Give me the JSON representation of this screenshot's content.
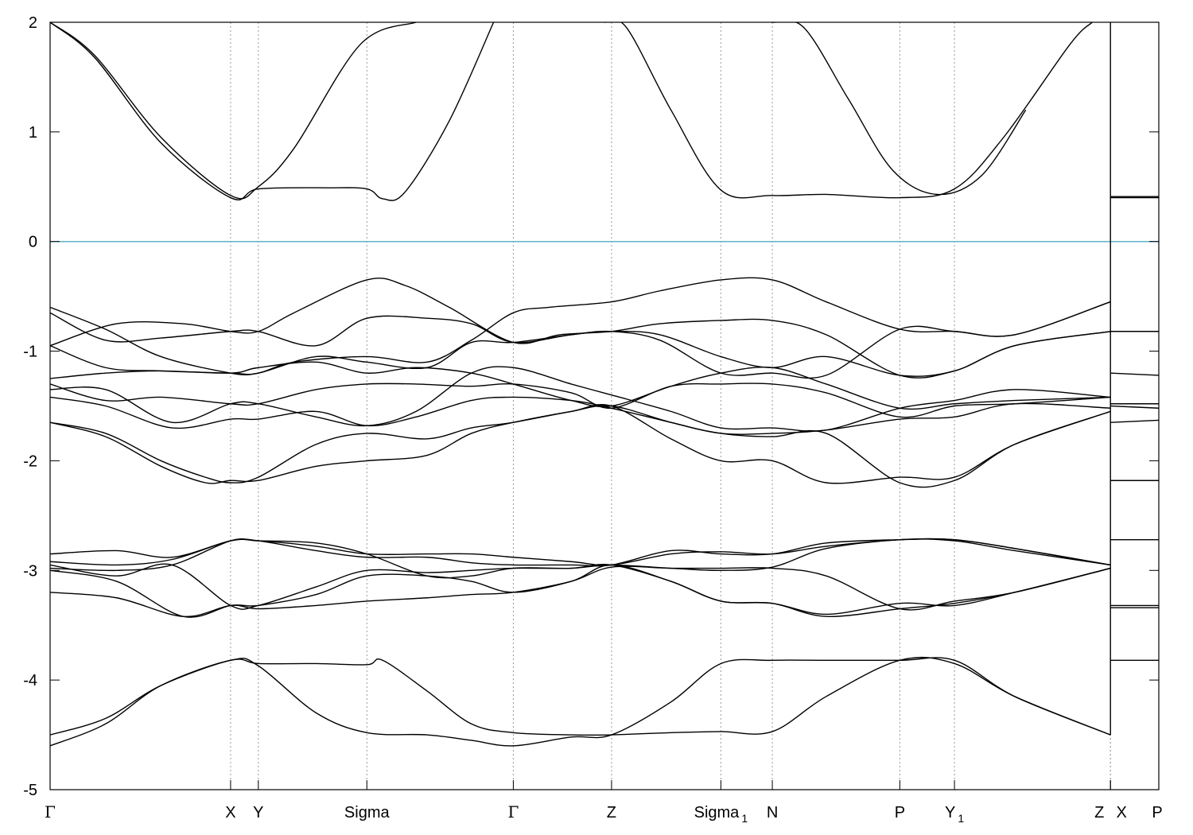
{
  "chart_data": {
    "type": "line",
    "title": "",
    "xlabel": "",
    "ylabel": "",
    "ylim": [
      -5,
      2
    ],
    "yticks": [
      -5,
      -4,
      -3,
      -2,
      -1,
      0,
      1,
      2
    ],
    "xlim": [
      0,
      1.0
    ],
    "kpoints": [
      {
        "label": "Γ",
        "x": 0.0
      },
      {
        "label": "X",
        "x": 0.1628
      },
      {
        "label": "Y",
        "x": 0.1878
      },
      {
        "label": "Sigma",
        "x": 0.2857
      },
      {
        "label": "Γ",
        "x": 0.4178
      },
      {
        "label": "Z",
        "x": 0.5064
      },
      {
        "label": "Sigma",
        "sub": "1",
        "x": 0.605
      },
      {
        "label": "N",
        "x": 0.6514
      },
      {
        "label": "P",
        "x": 0.7664
      },
      {
        "label": "Y",
        "sub": "1",
        "x": 0.8157
      },
      {
        "label": "Z",
        "x": 0.9564
      },
      {
        "label": "X",
        "x": 0.9564
      },
      {
        "label": "P",
        "x": 1.0
      }
    ],
    "fermi_level": 0,
    "grid": "vertical-dotted-at-kpoints",
    "colors": {
      "bands": "#000000",
      "fermi": "#5fb3c9",
      "grid": "#999999"
    },
    "series": [
      {
        "x": [
          0.0,
          0.04,
          0.1,
          0.1628,
          0.1878,
          0.22,
          0.28,
          0.33
        ],
        "y": [
          2.0,
          1.7,
          0.95,
          0.42,
          0.5,
          0.85,
          1.8,
          2.0
        ]
      },
      {
        "x": [
          0.0,
          0.04,
          0.1,
          0.1628,
          0.1878,
          0.25,
          0.2857,
          0.3,
          0.32,
          0.36,
          0.4
        ],
        "y": [
          2.0,
          1.68,
          0.9,
          0.4,
          0.48,
          0.49,
          0.48,
          0.39,
          0.45,
          1.1,
          2.0
        ]
      },
      {
        "x": [
          0.5,
          0.52,
          0.56,
          0.605,
          0.6514,
          0.7,
          0.7664,
          0.8157,
          0.86,
          0.92,
          0.94
        ],
        "y": [
          2.0,
          1.95,
          1.2,
          0.47,
          0.42,
          0.43,
          0.4,
          0.48,
          0.95,
          1.8,
          2.0
        ]
      },
      {
        "x": [
          0.6514,
          0.68,
          0.72,
          0.76,
          0.8,
          0.84,
          0.88
        ],
        "y": [
          2.0,
          1.95,
          1.3,
          0.65,
          0.43,
          0.6,
          1.2
        ]
      },
      {
        "x": [
          0.9564,
          1.0
        ],
        "y": [
          0.41,
          0.41
        ]
      },
      {
        "x": [
          0.9564,
          1.0
        ],
        "y": [
          0.4,
          0.4
        ]
      },
      {
        "x": [
          0.0,
          0.05,
          0.1,
          0.1628,
          0.1878,
          0.22,
          0.2857,
          0.34,
          0.38,
          0.4178,
          0.45,
          0.5064,
          0.55,
          0.605,
          0.6514,
          0.7,
          0.7664,
          0.8157,
          0.87,
          0.9564
        ],
        "y": [
          -0.6,
          -0.8,
          -1.05,
          -1.2,
          -1.2,
          -1.1,
          -1.05,
          -1.1,
          -0.9,
          -0.65,
          -0.6,
          -0.55,
          -0.45,
          -0.35,
          -0.35,
          -0.55,
          -0.8,
          -0.82,
          -0.85,
          -0.55
        ]
      },
      {
        "x": [
          0.0,
          0.06,
          0.12,
          0.1628,
          0.1878,
          0.22,
          0.2857,
          0.32,
          0.36,
          0.4178,
          0.46,
          0.5064,
          0.55,
          0.605,
          0.6514,
          0.7,
          0.7664,
          0.8157,
          0.87,
          0.9564
        ],
        "y": [
          -0.95,
          -0.75,
          -0.75,
          -0.82,
          -0.82,
          -0.65,
          -0.35,
          -0.4,
          -0.6,
          -0.92,
          -0.85,
          -0.82,
          -0.75,
          -0.72,
          -0.72,
          -0.85,
          -1.22,
          -1.18,
          -0.95,
          -0.82
        ]
      },
      {
        "x": [
          0.0,
          0.05,
          0.1,
          0.1628,
          0.1878,
          0.24,
          0.2857,
          0.34,
          0.38,
          0.4178,
          0.47,
          0.5064,
          0.55,
          0.605,
          0.6514,
          0.7,
          0.7664,
          0.8157,
          0.87,
          0.9564
        ],
        "y": [
          -0.65,
          -0.9,
          -0.88,
          -0.82,
          -0.82,
          -0.95,
          -0.7,
          -0.7,
          -0.75,
          -0.92,
          -0.85,
          -0.82,
          -0.85,
          -1.05,
          -1.15,
          -1.05,
          -1.22,
          -1.18,
          -0.95,
          -0.82
        ]
      },
      {
        "x": [
          0.0,
          0.05,
          0.1,
          0.1628,
          0.1878,
          0.24,
          0.2857,
          0.34,
          0.38,
          0.4178,
          0.47,
          0.5064,
          0.55,
          0.605,
          0.6514,
          0.7,
          0.7664,
          0.8157,
          0.87,
          0.9564
        ],
        "y": [
          -0.95,
          -1.15,
          -1.18,
          -1.2,
          -1.2,
          -1.05,
          -1.1,
          -1.15,
          -0.92,
          -0.92,
          -0.85,
          -0.82,
          -0.9,
          -1.2,
          -1.2,
          -1.22,
          -0.8,
          -0.82,
          -0.85,
          -0.55
        ]
      },
      {
        "x": [
          0.0,
          0.05,
          0.1,
          0.1628,
          0.1878,
          0.24,
          0.2857,
          0.33,
          0.38,
          0.4178,
          0.47,
          0.5064,
          0.56,
          0.605,
          0.6514,
          0.7,
          0.7664,
          0.8157,
          0.87,
          0.9564
        ],
        "y": [
          -1.25,
          -1.2,
          -1.18,
          -1.2,
          -1.15,
          -1.1,
          -1.2,
          -1.15,
          -1.2,
          -1.3,
          -1.45,
          -1.5,
          -1.32,
          -1.2,
          -1.15,
          -1.3,
          -1.52,
          -1.48,
          -1.45,
          -1.42
        ]
      },
      {
        "x": [
          0.0,
          0.05,
          0.1,
          0.1628,
          0.1878,
          0.24,
          0.2857,
          0.33,
          0.38,
          0.4178,
          0.47,
          0.5064,
          0.56,
          0.605,
          0.6514,
          0.7,
          0.7664,
          0.8157,
          0.87,
          0.9564
        ],
        "y": [
          -1.3,
          -1.45,
          -1.42,
          -1.48,
          -1.48,
          -1.35,
          -1.3,
          -1.3,
          -1.32,
          -1.3,
          -1.38,
          -1.52,
          -1.32,
          -1.3,
          -1.3,
          -1.38,
          -1.6,
          -1.5,
          -1.48,
          -1.42
        ]
      },
      {
        "x": [
          0.0,
          0.05,
          0.11,
          0.1628,
          0.1878,
          0.24,
          0.2857,
          0.33,
          0.38,
          0.4178,
          0.47,
          0.5064,
          0.56,
          0.605,
          0.6514,
          0.7,
          0.7664,
          0.8157,
          0.87,
          0.9564
        ],
        "y": [
          -1.35,
          -1.35,
          -1.65,
          -1.48,
          -1.48,
          -1.6,
          -1.68,
          -1.55,
          -1.2,
          -1.15,
          -1.3,
          -1.4,
          -1.55,
          -1.7,
          -1.7,
          -1.72,
          -1.52,
          -1.45,
          -1.35,
          -1.42
        ]
      },
      {
        "x": [
          0.0,
          0.05,
          0.11,
          0.1628,
          0.1878,
          0.24,
          0.2857,
          0.33,
          0.38,
          0.4178,
          0.47,
          0.5064,
          0.56,
          0.605,
          0.6514,
          0.7,
          0.7664,
          0.8157,
          0.87,
          0.9564
        ],
        "y": [
          -1.42,
          -1.5,
          -1.7,
          -1.62,
          -1.62,
          -1.55,
          -1.68,
          -1.6,
          -1.45,
          -1.42,
          -1.45,
          -1.52,
          -1.65,
          -1.75,
          -1.75,
          -1.72,
          -1.62,
          -1.6,
          -1.48,
          -1.52
        ]
      },
      {
        "x": [
          0.0,
          0.05,
          0.1,
          0.14,
          0.1628,
          0.1878,
          0.24,
          0.2857,
          0.34,
          0.38,
          0.4178,
          0.47,
          0.5064,
          0.56,
          0.605,
          0.6514,
          0.7,
          0.7664,
          0.8157,
          0.87,
          0.9564
        ],
        "y": [
          -1.65,
          -1.75,
          -2.0,
          -2.15,
          -2.2,
          -2.15,
          -1.85,
          -1.75,
          -1.8,
          -1.7,
          -1.65,
          -1.55,
          -1.5,
          -1.8,
          -2.0,
          -2.0,
          -2.2,
          -2.15,
          -2.15,
          -1.85,
          -1.55
        ]
      },
      {
        "x": [
          0.0,
          0.05,
          0.1,
          0.14,
          0.1628,
          0.1878,
          0.24,
          0.2857,
          0.34,
          0.38,
          0.4178,
          0.47,
          0.5064,
          0.56,
          0.605,
          0.6514,
          0.7,
          0.7664,
          0.8157,
          0.87,
          0.9564
        ],
        "y": [
          -1.65,
          -1.78,
          -2.05,
          -2.2,
          -2.18,
          -2.18,
          -2.05,
          -2.0,
          -1.95,
          -1.75,
          -1.65,
          -1.55,
          -1.5,
          -1.65,
          -1.75,
          -1.78,
          -1.75,
          -2.2,
          -2.18,
          -1.85,
          -1.55
        ]
      },
      {
        "x": [
          0.9564,
          1.0
        ],
        "y": [
          -0.82,
          -0.82
        ]
      },
      {
        "x": [
          0.9564,
          1.0
        ],
        "y": [
          -1.2,
          -1.22
        ]
      },
      {
        "x": [
          0.9564,
          1.0
        ],
        "y": [
          -1.48,
          -1.48
        ]
      },
      {
        "x": [
          0.9564,
          1.0
        ],
        "y": [
          -1.5,
          -1.52
        ]
      },
      {
        "x": [
          0.9564,
          1.0
        ],
        "y": [
          -1.65,
          -1.63
        ]
      },
      {
        "x": [
          0.9564,
          1.0
        ],
        "y": [
          -2.18,
          -2.18
        ]
      },
      {
        "x": [
          0.0,
          0.06,
          0.11,
          0.1628,
          0.1878,
          0.24,
          0.2857,
          0.34,
          0.38,
          0.4178,
          0.47,
          0.5064,
          0.56,
          0.605,
          0.6514,
          0.7,
          0.7664,
          0.8157,
          0.87,
          0.9564
        ],
        "y": [
          -2.85,
          -2.82,
          -2.88,
          -2.73,
          -2.73,
          -2.78,
          -2.85,
          -2.85,
          -2.85,
          -2.88,
          -2.92,
          -2.95,
          -2.85,
          -2.83,
          -2.85,
          -2.78,
          -2.72,
          -2.72,
          -2.8,
          -2.95
        ]
      },
      {
        "x": [
          0.0,
          0.06,
          0.11,
          0.1628,
          0.1878,
          0.24,
          0.2857,
          0.34,
          0.38,
          0.4178,
          0.47,
          0.5064,
          0.56,
          0.605,
          0.6514,
          0.7,
          0.7664,
          0.8157,
          0.87,
          0.9564
        ],
        "y": [
          -2.92,
          -2.95,
          -2.9,
          -2.73,
          -2.73,
          -2.82,
          -2.88,
          -2.88,
          -2.93,
          -2.95,
          -2.95,
          -2.95,
          -2.82,
          -2.85,
          -2.85,
          -2.75,
          -2.72,
          -2.72,
          -2.8,
          -2.95
        ]
      },
      {
        "x": [
          0.0,
          0.06,
          0.11,
          0.1628,
          0.1878,
          0.24,
          0.2857,
          0.34,
          0.38,
          0.4178,
          0.47,
          0.5064,
          0.56,
          0.605,
          0.6514,
          0.7,
          0.7664,
          0.8157,
          0.87,
          0.9564
        ],
        "y": [
          -2.98,
          -3.0,
          -2.95,
          -2.73,
          -2.73,
          -2.75,
          -2.85,
          -3.05,
          -3.05,
          -2.98,
          -2.98,
          -2.95,
          -2.98,
          -3.0,
          -2.97,
          -2.8,
          -2.72,
          -2.73,
          -2.82,
          -2.95
        ]
      },
      {
        "x": [
          0.0,
          0.06,
          0.11,
          0.1628,
          0.1878,
          0.24,
          0.2857,
          0.34,
          0.38,
          0.4178,
          0.47,
          0.5064,
          0.56,
          0.605,
          0.6514,
          0.7,
          0.7664,
          0.8157,
          0.87,
          0.9564
        ],
        "y": [
          -2.95,
          -3.05,
          -2.95,
          -3.32,
          -3.32,
          -3.15,
          -3.0,
          -3.02,
          -3.0,
          -2.98,
          -2.98,
          -2.95,
          -3.1,
          -3.28,
          -3.3,
          -3.42,
          -3.35,
          -3.3,
          -3.2,
          -2.98
        ]
      },
      {
        "x": [
          0.0,
          0.06,
          0.12,
          0.1628,
          0.1878,
          0.24,
          0.2857,
          0.34,
          0.38,
          0.4178,
          0.47,
          0.5064,
          0.56,
          0.605,
          0.6514,
          0.7,
          0.7664,
          0.8157,
          0.87,
          0.9564
        ],
        "y": [
          -3.0,
          -3.1,
          -3.42,
          -3.32,
          -3.32,
          -3.22,
          -3.05,
          -3.05,
          -3.1,
          -3.2,
          -3.1,
          -2.95,
          -3.1,
          -3.28,
          -3.3,
          -3.4,
          -3.3,
          -3.32,
          -3.2,
          -2.98
        ]
      },
      {
        "x": [
          0.0,
          0.06,
          0.12,
          0.1628,
          0.1878,
          0.24,
          0.2857,
          0.34,
          0.38,
          0.4178,
          0.47,
          0.5064,
          0.56,
          0.605,
          0.6514,
          0.7,
          0.7664,
          0.8157,
          0.87,
          0.9564
        ],
        "y": [
          -3.2,
          -3.25,
          -3.42,
          -3.32,
          -3.35,
          -3.32,
          -3.28,
          -3.25,
          -3.22,
          -3.2,
          -3.1,
          -2.97,
          -2.98,
          -2.98,
          -2.98,
          -3.05,
          -3.35,
          -3.28,
          -3.2,
          -2.98
        ]
      },
      {
        "x": [
          0.9564,
          1.0
        ],
        "y": [
          -2.72,
          -2.72
        ]
      },
      {
        "x": [
          0.9564,
          1.0
        ],
        "y": [
          -3.32,
          -3.32
        ]
      },
      {
        "x": [
          0.9564,
          1.0
        ],
        "y": [
          -3.34,
          -3.34
        ]
      },
      {
        "x": [
          0.0,
          0.05,
          0.1,
          0.1628,
          0.1878,
          0.24,
          0.2857,
          0.3,
          0.34,
          0.38,
          0.4178,
          0.47,
          0.5064,
          0.56,
          0.605,
          0.6514,
          0.7,
          0.7664,
          0.8157,
          0.87,
          0.9564
        ],
        "y": [
          -4.5,
          -4.35,
          -4.05,
          -3.82,
          -3.85,
          -3.85,
          -3.86,
          -3.82,
          -4.1,
          -4.4,
          -4.48,
          -4.5,
          -4.5,
          -4.48,
          -4.47,
          -4.47,
          -4.15,
          -3.82,
          -3.85,
          -4.15,
          -4.5
        ]
      },
      {
        "x": [
          0.0,
          0.05,
          0.1,
          0.1628,
          0.1878,
          0.24,
          0.2857,
          0.34,
          0.38,
          0.4178,
          0.47,
          0.5064,
          0.56,
          0.605,
          0.6514,
          0.7,
          0.7664,
          0.8157,
          0.87,
          0.9564
        ],
        "y": [
          -4.6,
          -4.4,
          -4.05,
          -3.82,
          -3.87,
          -4.3,
          -4.48,
          -4.5,
          -4.55,
          -4.6,
          -4.52,
          -4.5,
          -4.2,
          -3.85,
          -3.82,
          -3.82,
          -3.82,
          -3.82,
          -4.15,
          -4.5
        ]
      },
      {
        "x": [
          0.9564,
          1.0
        ],
        "y": [
          -3.82,
          -3.82
        ]
      }
    ]
  }
}
